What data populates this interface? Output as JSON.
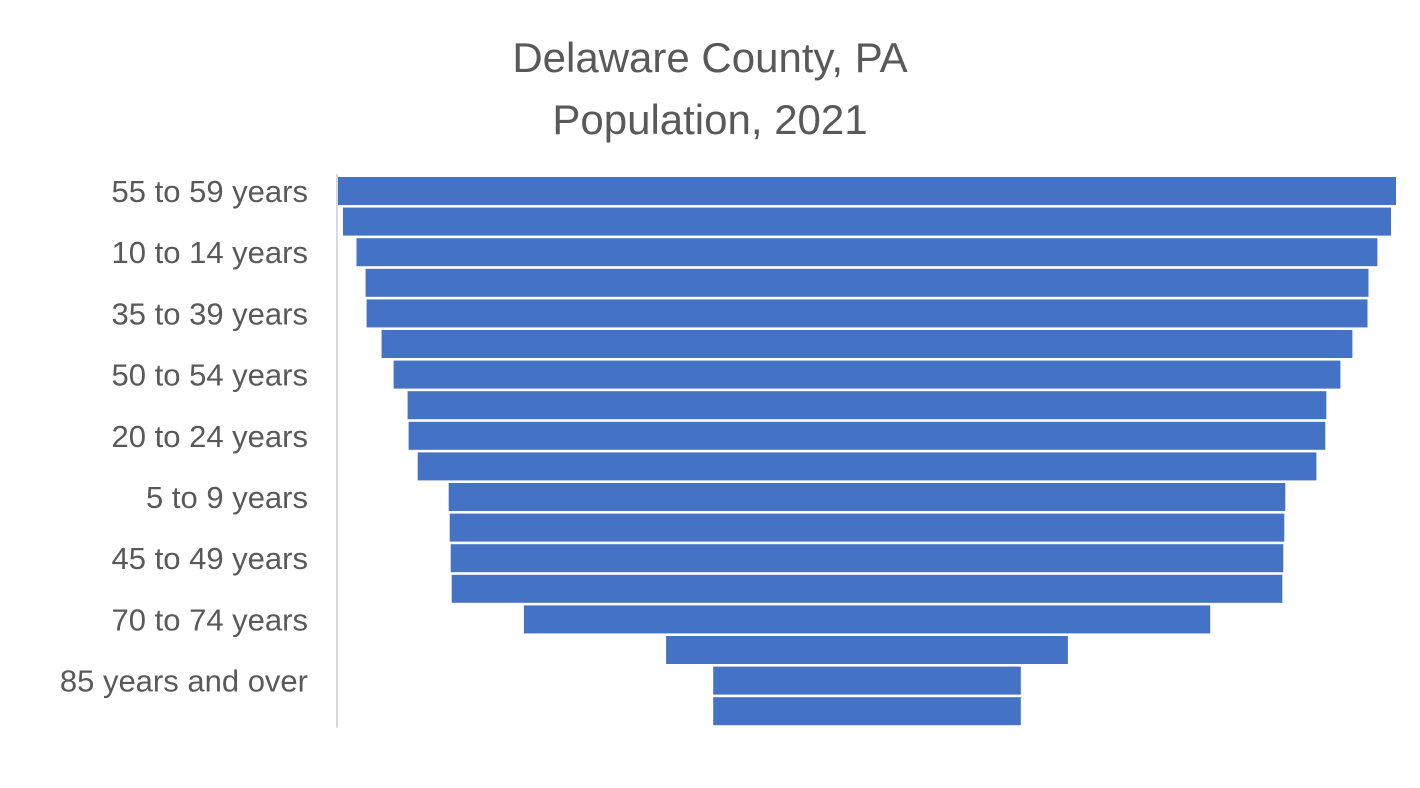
{
  "chart_data": {
    "type": "bar",
    "orientation": "horizontal",
    "layout": "centered-funnel",
    "title_lines": [
      "Delaware County, PA",
      "Population, 2021"
    ],
    "categories": [
      "55 to 59 years",
      "",
      "10 to 14 years",
      "",
      "35 to 39 years",
      "",
      "50 to 54 years",
      "",
      "20 to 24 years",
      "",
      "5 to 9 years",
      "",
      "45 to 49 years",
      "",
      "70 to 74 years",
      "",
      "85 years and over",
      ""
    ],
    "values": [
      1056,
      1046,
      1019,
      1001,
      999,
      969,
      945,
      917,
      915,
      897,
      835,
      833,
      831,
      829,
      685,
      401,
      307,
      307
    ],
    "axis": {
      "value_axis_visible": false,
      "category_axis_line": true
    },
    "grid": false,
    "legend": "none",
    "colors": {
      "bar": "#4472C4",
      "text": "#595959",
      "axis_line": "#D9D9D9"
    }
  }
}
